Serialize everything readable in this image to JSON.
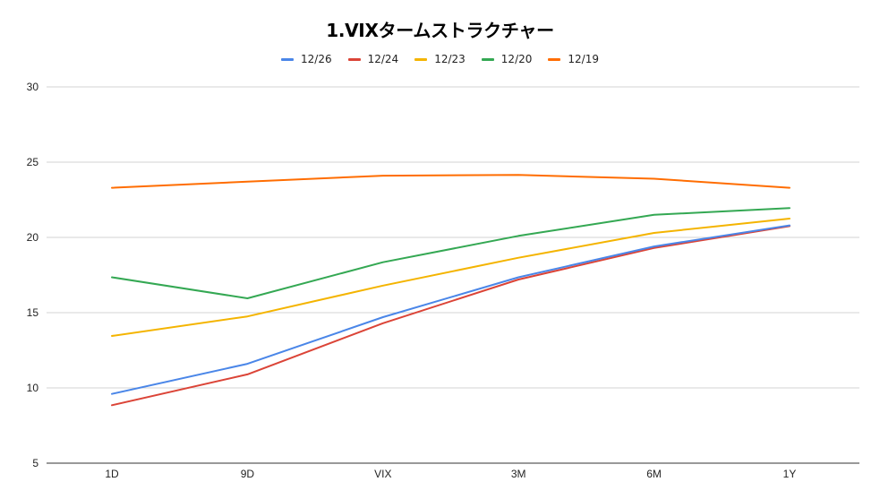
{
  "chart_data": {
    "type": "line",
    "title": "1.VIXタームストラクチャー",
    "xlabel": "",
    "ylabel": "",
    "categories": [
      "1D",
      "9D",
      "VIX",
      "3M",
      "6M",
      "1Y"
    ],
    "ylim": [
      5,
      30
    ],
    "yticks": [
      5,
      10,
      15,
      20,
      25,
      30
    ],
    "grid": true,
    "legend_position": "top-center",
    "series": [
      {
        "name": "12/26",
        "color": "#4a86e8",
        "values": [
          9.6,
          11.6,
          14.7,
          17.35,
          19.4,
          20.8
        ]
      },
      {
        "name": "12/24",
        "color": "#db4437",
        "values": [
          8.85,
          10.9,
          14.3,
          17.2,
          19.3,
          20.75
        ]
      },
      {
        "name": "12/23",
        "color": "#f4b400",
        "values": [
          13.45,
          14.75,
          16.8,
          18.65,
          20.3,
          21.25
        ]
      },
      {
        "name": "12/20",
        "color": "#34a853",
        "values": [
          17.35,
          15.95,
          18.35,
          20.1,
          21.5,
          21.95
        ]
      },
      {
        "name": "12/19",
        "color": "#ff6d01",
        "values": [
          23.3,
          23.7,
          24.1,
          24.15,
          23.9,
          23.3
        ]
      }
    ]
  }
}
